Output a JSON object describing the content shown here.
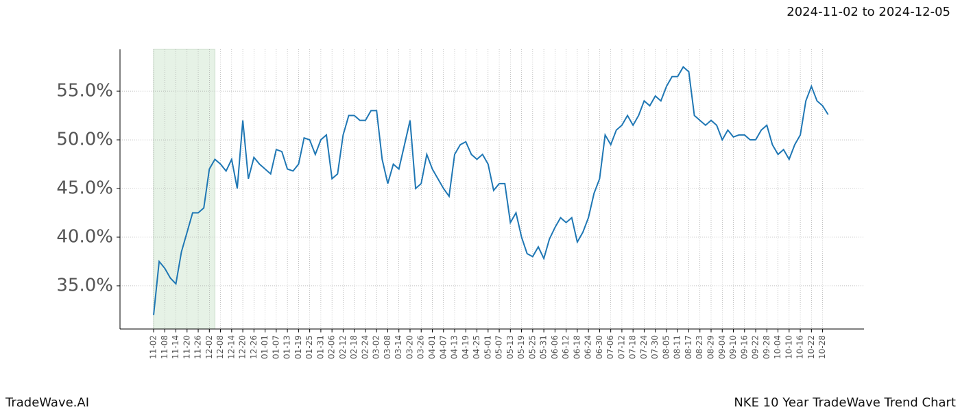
{
  "chart_data": {
    "type": "line",
    "title": "NKE 10 Year TradeWave Trend Chart",
    "subtitle": "2024-11-02 to 2024-12-05",
    "watermark": "TradeWave.AI",
    "categories": [
      "11-02",
      null,
      "11-08",
      null,
      "11-14",
      null,
      "11-20",
      null,
      "11-26",
      null,
      "12-02",
      null,
      "12-08",
      null,
      "12-14",
      null,
      "12-20",
      null,
      "12-26",
      null,
      "01-01",
      null,
      "01-07",
      null,
      "01-13",
      null,
      "01-19",
      null,
      "01-25",
      null,
      "01-31",
      null,
      "02-06",
      null,
      "02-12",
      null,
      "02-18",
      null,
      "02-24",
      null,
      "03-02",
      null,
      "03-08",
      null,
      "03-14",
      null,
      "03-20",
      null,
      "03-26",
      null,
      "04-01",
      null,
      "04-07",
      null,
      "04-13",
      null,
      "04-19",
      null,
      "04-25",
      null,
      "05-01",
      null,
      "05-07",
      null,
      "05-13",
      null,
      "05-19",
      null,
      "05-25",
      null,
      "05-31",
      null,
      "06-06",
      null,
      "06-12",
      null,
      "06-18",
      null,
      "06-24",
      null,
      "06-30",
      null,
      "07-06",
      null,
      "07-12",
      null,
      "07-18",
      null,
      "07-24",
      null,
      "07-30",
      null,
      "08-05",
      null,
      "08-11",
      null,
      "08-17",
      null,
      "08-23",
      null,
      "08-29",
      null,
      "09-04",
      null,
      "09-10",
      null,
      "09-16",
      null,
      "09-22",
      null,
      "09-28",
      null,
      "10-04",
      null,
      "10-10",
      null,
      "10-16",
      null,
      "10-22",
      null,
      "10-28",
      null
    ],
    "values": [
      32.0,
      37.5,
      36.8,
      35.8,
      35.2,
      38.5,
      40.5,
      42.5,
      42.5,
      43.0,
      47.0,
      48.0,
      47.5,
      46.8,
      48.0,
      45.0,
      52.0,
      46.0,
      48.2,
      47.5,
      47.0,
      46.5,
      49.0,
      48.8,
      47.0,
      46.8,
      47.5,
      50.2,
      50.0,
      48.5,
      50.0,
      50.5,
      46.0,
      46.5,
      50.5,
      52.5,
      52.5,
      52.0,
      52.0,
      53.0,
      53.0,
      48.0,
      45.5,
      47.5,
      47.0,
      49.5,
      52.0,
      45.0,
      45.5,
      48.5,
      47.0,
      46.0,
      45.0,
      44.2,
      48.5,
      49.5,
      49.8,
      48.5,
      48.0,
      48.5,
      47.5,
      44.8,
      45.5,
      45.5,
      41.5,
      42.5,
      40.0,
      38.3,
      38.0,
      39.0,
      37.8,
      39.8,
      41.0,
      42.0,
      41.5,
      42.0,
      39.5,
      40.5,
      42.0,
      44.5,
      46.0,
      50.5,
      49.5,
      51.0,
      51.5,
      52.5,
      51.5,
      52.5,
      54.0,
      53.5,
      54.5,
      54.0,
      55.5,
      56.5,
      56.5,
      57.5,
      57.0,
      52.5,
      52.0,
      51.5,
      52.0,
      51.5,
      50.0,
      51.0,
      50.3,
      50.5,
      50.5,
      50.0,
      50.0,
      51.0,
      51.5,
      49.5,
      48.5,
      49.0,
      48.0,
      49.5,
      50.5,
      54.0,
      55.5,
      54.0,
      53.5,
      52.6
    ],
    "color": "#1f77b4",
    "ylim": [
      30.56,
      59.3
    ],
    "yticks": [
      {
        "value": 35,
        "label": "35.0%"
      },
      {
        "value": 40,
        "label": "40.0%"
      },
      {
        "value": 45,
        "label": "45.0%"
      },
      {
        "value": 50,
        "label": "50.0%"
      },
      {
        "value": 55,
        "label": "55.0%"
      }
    ],
    "grid": true
  }
}
